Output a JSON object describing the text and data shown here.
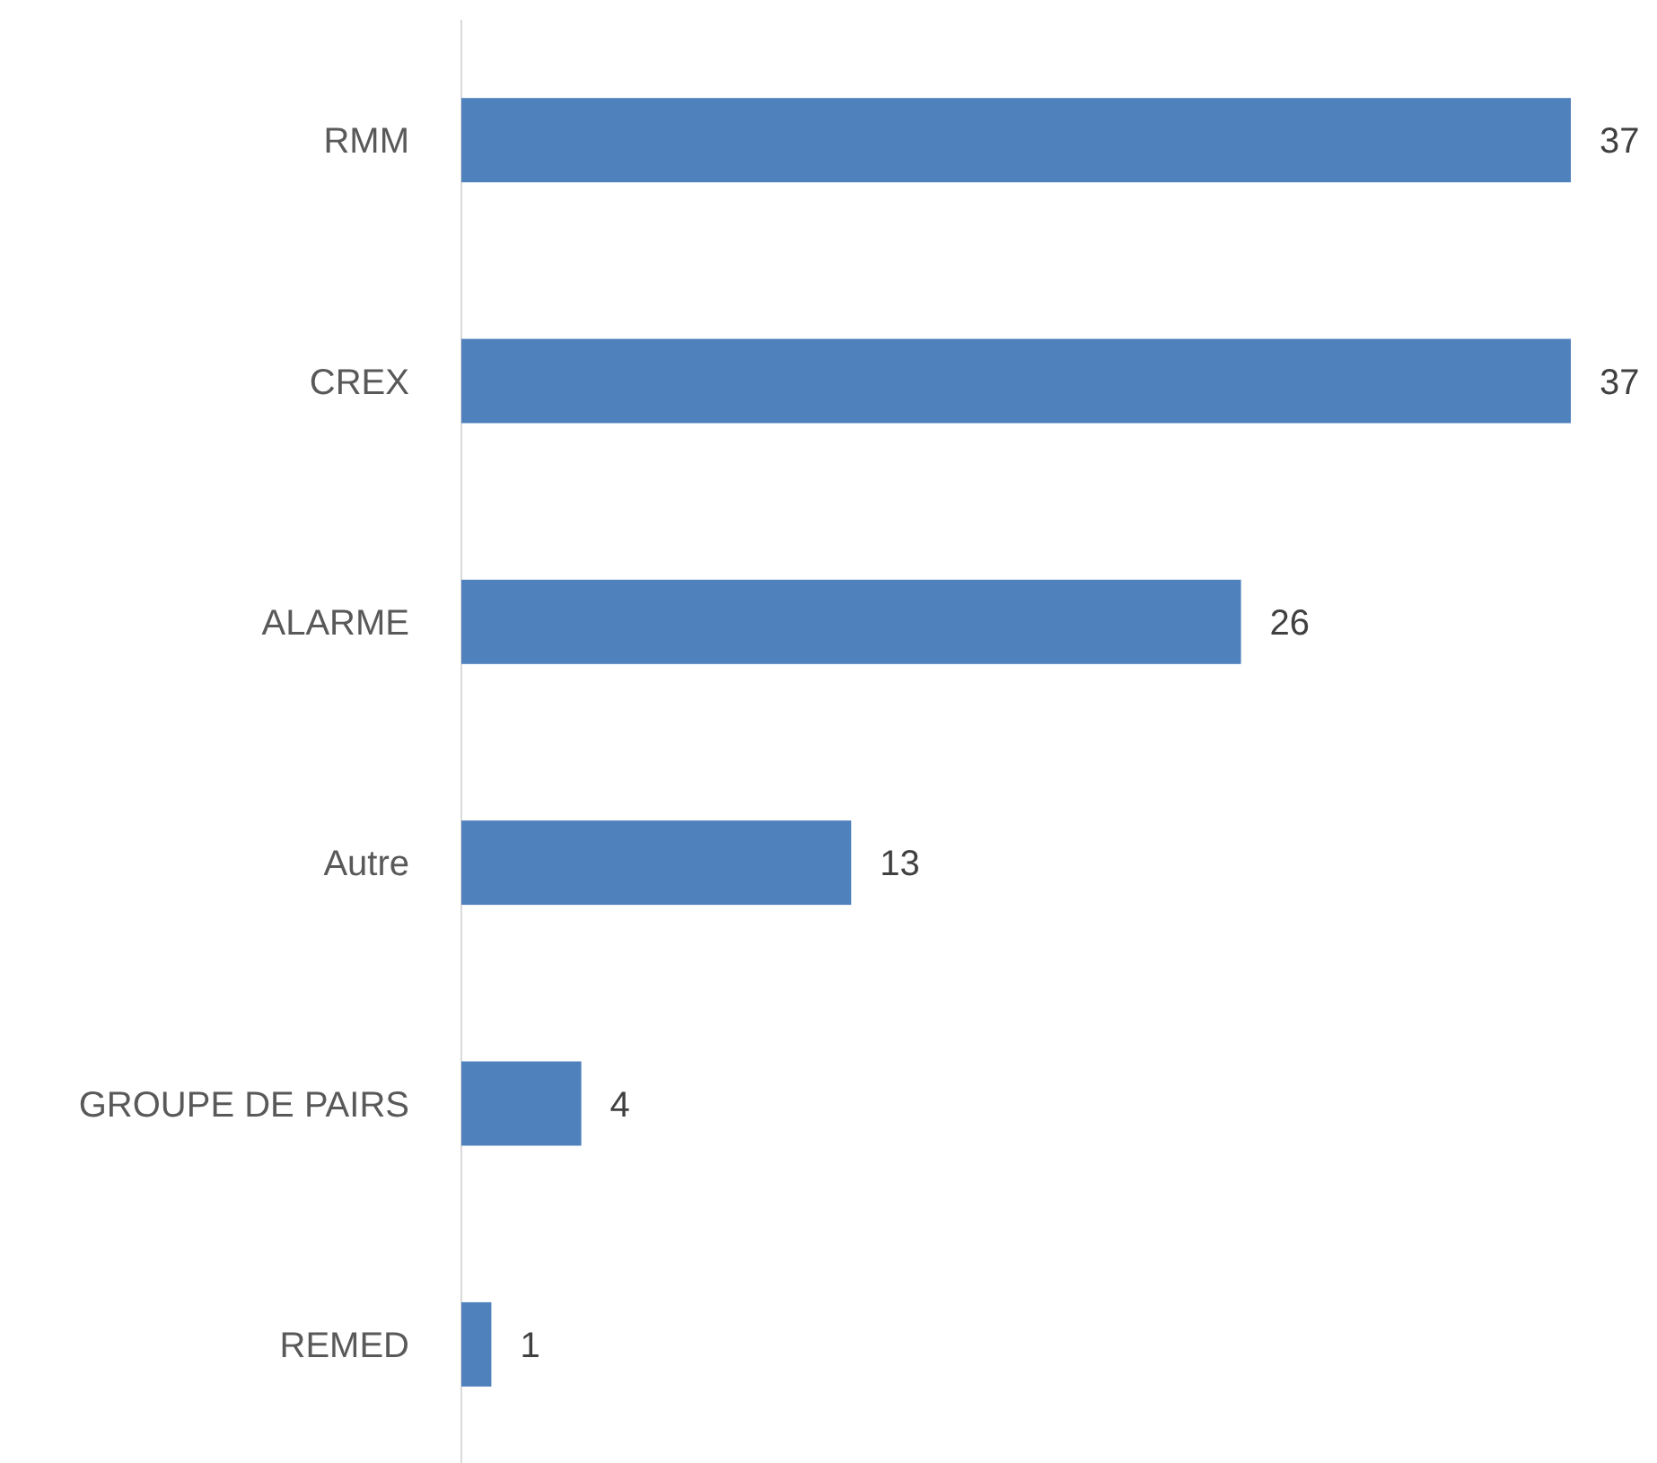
{
  "chart_data": {
    "type": "bar",
    "orientation": "horizontal",
    "categories": [
      "RMM",
      "CREX",
      "ALARME",
      "Autre",
      "GROUPE DE PAIRS",
      "REMED"
    ],
    "values": [
      37,
      37,
      26,
      13,
      4,
      1
    ],
    "color": "#4f81bd",
    "data_labels": true
  }
}
